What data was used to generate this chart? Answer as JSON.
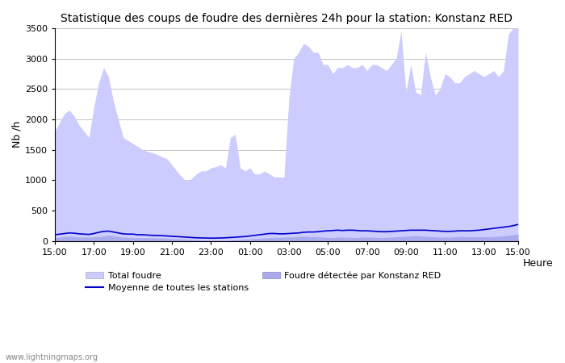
{
  "title": "Statistique des coups de foudre des dernières 24h pour la station: Konstanz RED",
  "xlabel": "Heure",
  "ylabel": "Nb /h",
  "watermark": "www.lightningmaps.org",
  "ylim": [
    0,
    3500
  ],
  "yticks": [
    0,
    500,
    1000,
    1500,
    2000,
    2500,
    3000,
    3500
  ],
  "xtick_labels": [
    "15:00",
    "17:00",
    "19:00",
    "21:00",
    "23:00",
    "01:00",
    "03:00",
    "05:00",
    "07:00",
    "09:00",
    "11:00",
    "13:00",
    "15:00"
  ],
  "xtick_positions": [
    0,
    8,
    16,
    24,
    32,
    40,
    48,
    56,
    64,
    72,
    80,
    88,
    95
  ],
  "legend": {
    "total_foudre": "Total foudre",
    "foudre_konstanz": "Foudre détectée par Konstanz RED",
    "moyenne": "Moyenne de toutes les stations"
  },
  "colors": {
    "total_foudre_fill": "#ccccff",
    "foudre_konstanz_fill": "#aaaaee",
    "moyenne_line": "#0000cc",
    "grid": "#aaaaaa",
    "background": "#ffffff",
    "title": "#000000",
    "watermark": "#888888"
  },
  "total_foudre": [
    1800,
    1950,
    2100,
    2150,
    2050,
    1900,
    1800,
    1700,
    2200,
    2600,
    2850,
    2700,
    2300,
    2000,
    1700,
    1650,
    1600,
    1550,
    1500,
    1470,
    1450,
    1420,
    1380,
    1350,
    1250,
    1150,
    1050,
    980,
    1020,
    1100,
    1150,
    1150,
    1200,
    1220,
    1250,
    1200,
    1700,
    1750,
    1200,
    1150,
    1200,
    1100,
    1100,
    1150,
    1100,
    1050,
    1050,
    1050,
    2350,
    3000,
    3100,
    3250,
    3200,
    3100,
    3100,
    2900,
    2900,
    2750,
    2850,
    2850,
    2900,
    2850,
    2850,
    2900,
    2800,
    2900,
    2900,
    2850,
    2800,
    2900,
    3000,
    3450,
    2450,
    2900,
    2450,
    2400,
    3100,
    2700,
    2400,
    2500,
    2750,
    2700,
    2600,
    2600,
    2700,
    2750,
    2800,
    2750,
    2700,
    2750,
    2800,
    2700,
    2800,
    3400,
    3500,
    3500
  ],
  "foudre_konstanz": [
    50,
    60,
    70,
    75,
    70,
    65,
    60,
    60,
    65,
    70,
    80,
    90,
    80,
    70,
    60,
    55,
    55,
    50,
    50,
    50,
    50,
    45,
    45,
    40,
    35,
    30,
    30,
    25,
    20,
    15,
    10,
    10,
    5,
    5,
    5,
    5,
    10,
    15,
    20,
    25,
    30,
    35,
    40,
    45,
    50,
    55,
    55,
    60,
    60,
    65,
    70,
    75,
    70,
    65,
    65,
    60,
    55,
    55,
    60,
    60,
    60,
    55,
    55,
    60,
    60,
    60,
    55,
    55,
    55,
    60,
    65,
    70,
    75,
    80,
    85,
    80,
    75,
    70,
    65,
    60,
    60,
    60,
    65,
    70,
    70,
    65,
    65,
    65,
    65,
    65,
    70,
    75,
    80,
    90,
    100,
    110
  ],
  "moyenne": [
    100,
    110,
    120,
    130,
    125,
    115,
    110,
    105,
    120,
    140,
    155,
    160,
    145,
    130,
    115,
    110,
    110,
    100,
    100,
    95,
    90,
    88,
    85,
    80,
    75,
    70,
    65,
    60,
    55,
    50,
    48,
    46,
    44,
    45,
    47,
    50,
    55,
    60,
    65,
    70,
    80,
    90,
    100,
    110,
    120,
    120,
    115,
    115,
    120,
    125,
    130,
    140,
    145,
    145,
    150,
    160,
    165,
    170,
    175,
    170,
    175,
    175,
    170,
    165,
    165,
    160,
    155,
    150,
    150,
    155,
    160,
    165,
    170,
    175,
    175,
    175,
    175,
    170,
    165,
    160,
    155,
    155,
    160,
    165,
    165,
    165,
    170,
    175,
    185,
    195,
    205,
    215,
    225,
    235,
    250,
    270
  ]
}
